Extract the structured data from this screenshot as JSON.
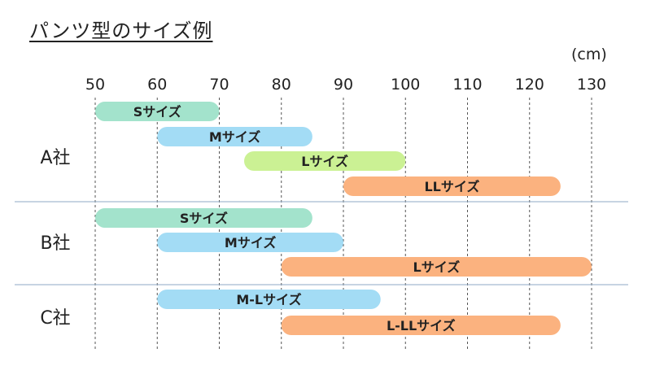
{
  "chart_data": {
    "type": "bar",
    "orientation": "horizontal-range",
    "title": "パンツ型のサイズ例",
    "unit_label": "(cm)",
    "xlim": [
      50,
      130
    ],
    "x_ticks": [
      50,
      60,
      70,
      80,
      90,
      100,
      110,
      120,
      130
    ],
    "grid": "vertical dashed",
    "groups": [
      {
        "name": "A社",
        "bars": [
          {
            "label": "Sサイズ",
            "start": 50,
            "end": 70,
            "color": "#a3e3cc"
          },
          {
            "label": "Mサイズ",
            "start": 60,
            "end": 85,
            "color": "#a3dcf5"
          },
          {
            "label": "Lサイズ",
            "start": 74,
            "end": 100,
            "color": "#cbf194"
          },
          {
            "label": "LLサイズ",
            "start": 90,
            "end": 125,
            "color": "#fbb27f"
          }
        ]
      },
      {
        "name": "B社",
        "bars": [
          {
            "label": "Sサイズ",
            "start": 50,
            "end": 85,
            "color": "#a3e3cc"
          },
          {
            "label": "Mサイズ",
            "start": 60,
            "end": 90,
            "color": "#a3dcf5"
          },
          {
            "label": "Lサイズ",
            "start": 80,
            "end": 130,
            "color": "#fbb27f"
          }
        ]
      },
      {
        "name": "C社",
        "bars": [
          {
            "label": "M-Lサイズ",
            "start": 60,
            "end": 96,
            "color": "#a3dcf5"
          },
          {
            "label": "L-LLサイズ",
            "start": 80,
            "end": 125,
            "color": "#fbb27f"
          }
        ]
      }
    ]
  }
}
